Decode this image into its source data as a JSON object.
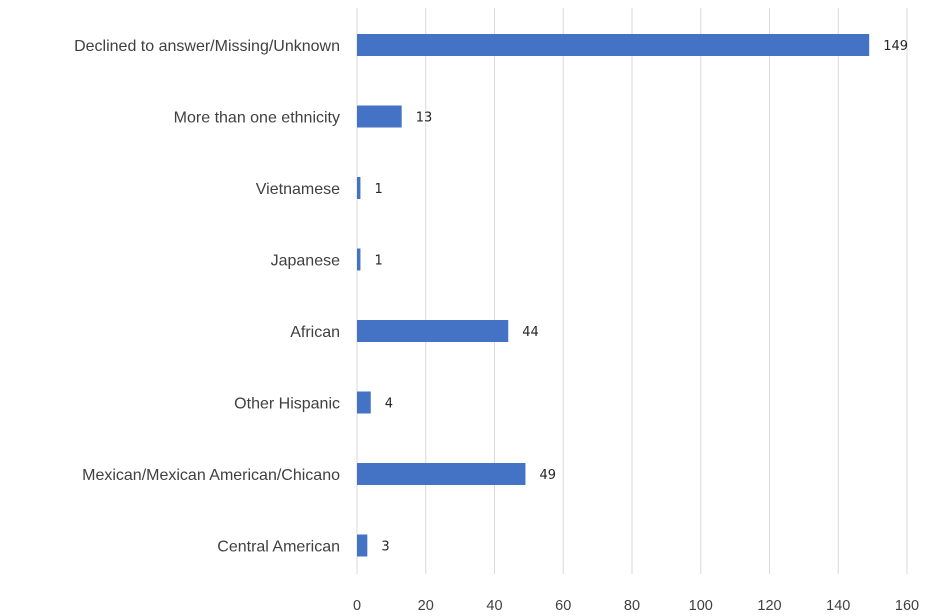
{
  "chart_data": {
    "type": "bar",
    "orientation": "horizontal",
    "categories": [
      "Declined to answer/Missing/Unknown",
      "More than one ethnicity",
      "Vietnamese",
      "Japanese",
      "African",
      "Other Hispanic",
      "Mexican/Mexican American/Chicano",
      "Central American"
    ],
    "values": [
      149,
      13,
      1,
      1,
      44,
      4,
      49,
      3
    ],
    "data_labels": [
      "149",
      "13",
      "1",
      "1",
      "44",
      "4",
      "49",
      "3"
    ],
    "x_ticks": [
      "0",
      "20",
      "40",
      "60",
      "80",
      "100",
      "120",
      "140",
      "160"
    ],
    "xlim": [
      0,
      160
    ],
    "grid": true,
    "legend": "none",
    "bar_color": "#4472c4"
  }
}
